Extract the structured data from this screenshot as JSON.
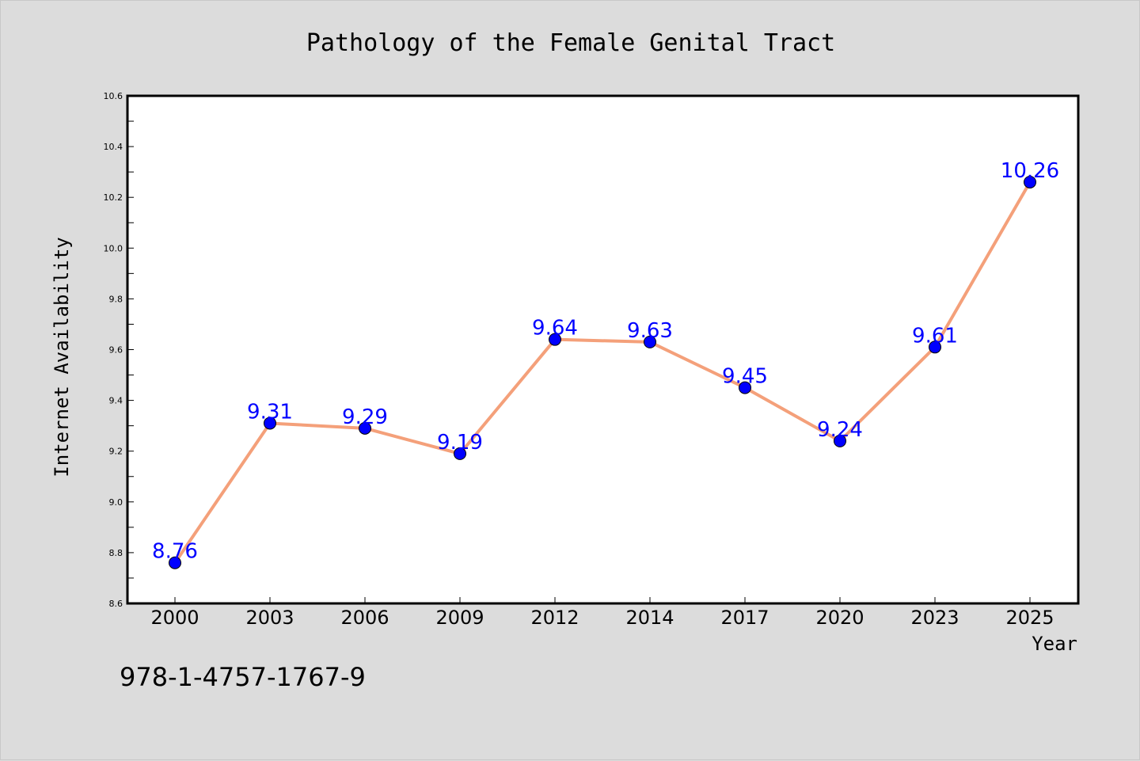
{
  "chart_data": {
    "type": "line",
    "title": "Pathology of the Female Genital Tract",
    "xlabel": "Year",
    "ylabel": "Internet Availability",
    "categories": [
      "2000",
      "2003",
      "2006",
      "2009",
      "2012",
      "2014",
      "2017",
      "2020",
      "2023",
      "2025"
    ],
    "series": [
      {
        "values": [
          8.76,
          9.31,
          9.29,
          9.19,
          9.64,
          9.63,
          9.45,
          9.24,
          9.61,
          10.26
        ]
      }
    ],
    "data_labels": [
      "8.76",
      "9.31",
      "9.29",
      "9.19",
      "9.64",
      "9.63",
      "9.45",
      "9.24",
      "9.61",
      "10.26"
    ],
    "ylim": [
      8.6,
      10.6
    ],
    "yticks": [
      "8.6",
      "8.8",
      "9.0",
      "9.2",
      "9.4",
      "9.6",
      "9.8",
      "10.0",
      "10.2",
      "10.4",
      "10.6"
    ],
    "grid": false,
    "line_color": "#f4a07a",
    "marker_color": "#0000ff",
    "label_color": "#0000ff"
  },
  "footer_text": "978-1-4757-1767-9"
}
